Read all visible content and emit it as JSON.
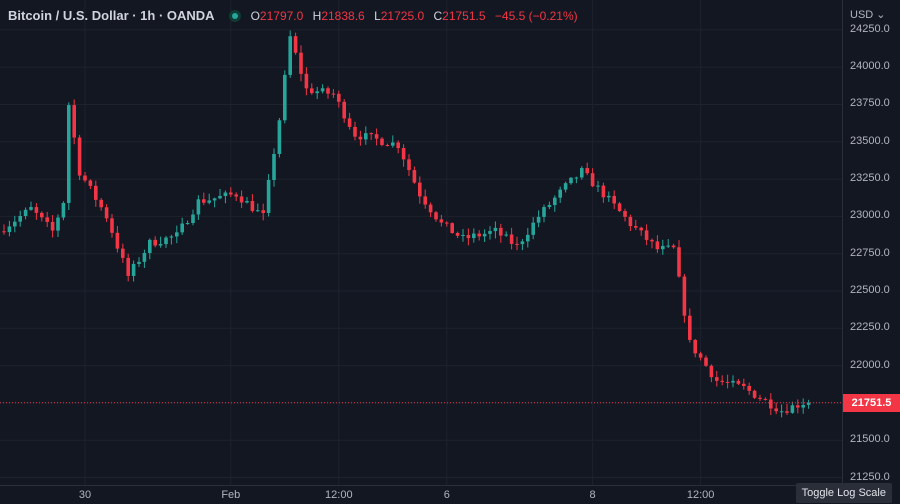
{
  "header": {
    "symbol": "Bitcoin / U.S. Dollar · 1h · OANDA",
    "open_label": "O",
    "open": "21797.0",
    "high_label": "H",
    "high": "21838.6",
    "low_label": "L",
    "low": "21725.0",
    "close_label": "C",
    "close": "21751.5",
    "change": "−45.5 (−0.21%)",
    "currency": "USD ⌄"
  },
  "toggle_label": "Toggle Log Scale",
  "last_price_label": "21751.5",
  "colors": {
    "up": "#26a69a",
    "down": "#f23645",
    "background": "#131722",
    "grid": "#1e222d"
  },
  "chart_data": {
    "type": "candlestick",
    "ylim": [
      21200,
      24450
    ],
    "y_ticks": [
      "24250.0",
      "24000.0",
      "23750.0",
      "23500.0",
      "23250.0",
      "23000.0",
      "22750.0",
      "22500.0",
      "22250.0",
      "22000.0",
      "21750.0",
      "21500.0",
      "21250.0"
    ],
    "x_ticks": [
      "30",
      "Feb",
      "12:00",
      "6",
      "8",
      "12:00"
    ],
    "x_tick_index": [
      15,
      42,
      62,
      82,
      109,
      129
    ],
    "last_price": 21751.5,
    "anchors": [
      [
        0,
        22900
      ],
      [
        6,
        23050
      ],
      [
        10,
        22900
      ],
      [
        12,
        23100
      ],
      [
        13,
        23750
      ],
      [
        15,
        23300
      ],
      [
        20,
        23000
      ],
      [
        24,
        22600
      ],
      [
        28,
        22820
      ],
      [
        33,
        22870
      ],
      [
        37,
        23100
      ],
      [
        44,
        23150
      ],
      [
        49,
        23000
      ],
      [
        52,
        23650
      ],
      [
        54,
        24200
      ],
      [
        57,
        23850
      ],
      [
        62,
        23820
      ],
      [
        66,
        23550
      ],
      [
        74,
        23480
      ],
      [
        78,
        23150
      ],
      [
        82,
        22950
      ],
      [
        86,
        22850
      ],
      [
        92,
        22900
      ],
      [
        96,
        22800
      ],
      [
        100,
        23000
      ],
      [
        105,
        23200
      ],
      [
        108,
        23300
      ],
      [
        112,
        23150
      ],
      [
        117,
        22950
      ],
      [
        122,
        22780
      ],
      [
        125,
        22780
      ],
      [
        128,
        22150
      ],
      [
        133,
        21900
      ],
      [
        138,
        21850
      ],
      [
        145,
        21700
      ],
      [
        149,
        21751.5
      ]
    ]
  }
}
